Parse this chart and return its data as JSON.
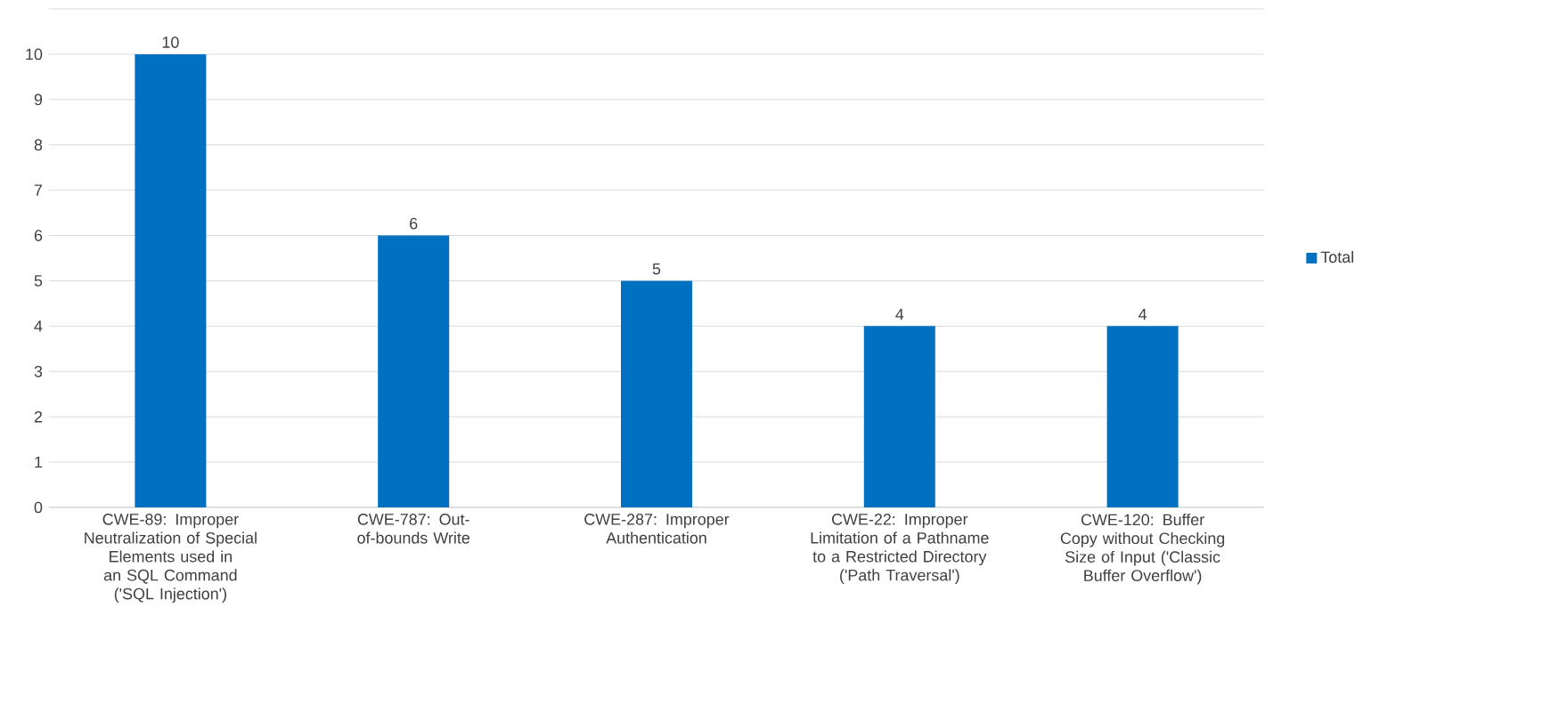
{
  "chart_data": {
    "type": "bar",
    "categories": [
      "CWE-89: Improper Neutralization of Special Elements used in an SQL Command ('SQL Injection')",
      "CWE-787: Out-of-bounds Write",
      "CWE-287: Improper Authentication",
      "CWE-22: Improper Limitation of a Pathname to a Restricted Directory ('Path Traversal')",
      "CWE-120: Buffer Copy without Checking Size of Input ('Classic Buffer Overflow')"
    ],
    "series": [
      {
        "name": "Total",
        "color": "#0070c0",
        "values": [
          10,
          6,
          5,
          4,
          4
        ],
        "value_labels": [
          "10",
          "6",
          "5",
          "4",
          "4"
        ]
      }
    ],
    "ylim": [
      0,
      11
    ],
    "yticks": [
      0,
      1,
      2,
      3,
      4,
      5,
      6,
      7,
      8,
      9,
      10,
      {
        "value": 11,
        "label": null
      }
    ],
    "grid": "y",
    "legend": "right"
  }
}
